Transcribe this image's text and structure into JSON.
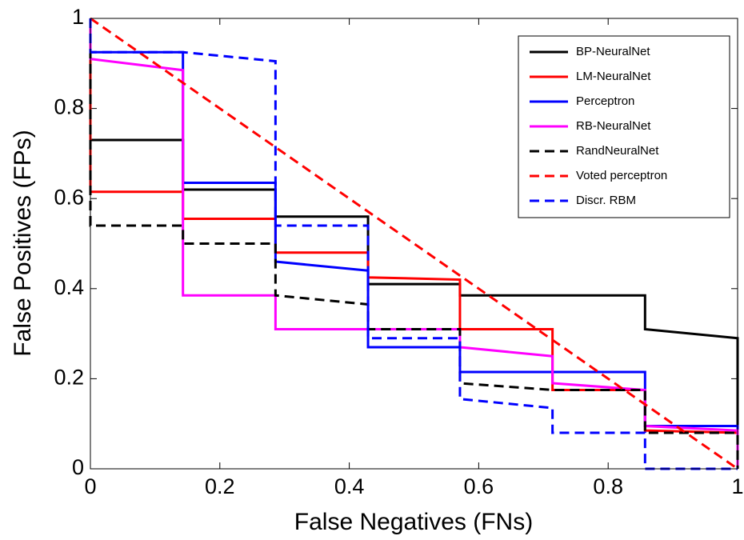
{
  "chart_data": {
    "type": "line",
    "xlabel": "False Negatives (FNs)",
    "ylabel": "False Positives (FPs)",
    "xlim": [
      0,
      1
    ],
    "ylim": [
      0,
      1
    ],
    "xticks": [
      0,
      0.2,
      0.4,
      0.6,
      0.8,
      1
    ],
    "yticks": [
      0,
      0.2,
      0.4,
      0.6,
      0.8,
      1
    ],
    "legend": "upper right",
    "series": [
      {
        "name": "BP-NeuralNet",
        "color": "#000000",
        "dash": false,
        "x": [
          0,
          0,
          0.143,
          0.143,
          0.286,
          0.286,
          0.429,
          0.429,
          0.571,
          0.571,
          0.857,
          0.857,
          1,
          1
        ],
        "values": [
          1,
          0.73,
          0.73,
          0.62,
          0.62,
          0.56,
          0.56,
          0.41,
          0.41,
          0.385,
          0.385,
          0.31,
          0.29,
          0
        ]
      },
      {
        "name": "LM-NeuralNet",
        "color": "#ff0000",
        "dash": false,
        "x": [
          0,
          0,
          0.143,
          0.143,
          0.286,
          0.286,
          0.429,
          0.429,
          0.571,
          0.571,
          0.714,
          0.714,
          0.857,
          0.857,
          1,
          1
        ],
        "values": [
          1,
          0.615,
          0.615,
          0.555,
          0.555,
          0.48,
          0.48,
          0.425,
          0.42,
          0.31,
          0.31,
          0.175,
          0.175,
          0.085,
          0.08,
          0
        ]
      },
      {
        "name": "Perceptron",
        "color": "#0000ff",
        "dash": false,
        "x": [
          0,
          0,
          0.143,
          0.143,
          0.286,
          0.286,
          0.429,
          0.429,
          0.571,
          0.571,
          0.857,
          0.857,
          1,
          1
        ],
        "values": [
          1,
          0.925,
          0.925,
          0.635,
          0.635,
          0.46,
          0.44,
          0.27,
          0.27,
          0.215,
          0.215,
          0.095,
          0.095,
          0
        ]
      },
      {
        "name": "RB-NeuralNet",
        "color": "#ff00ff",
        "dash": false,
        "x": [
          0,
          0,
          0.143,
          0.143,
          0.286,
          0.286,
          0.571,
          0.571,
          0.714,
          0.714,
          0.857,
          0.857,
          1,
          1
        ],
        "values": [
          1,
          0.91,
          0.885,
          0.385,
          0.385,
          0.31,
          0.31,
          0.27,
          0.25,
          0.19,
          0.175,
          0.095,
          0.085,
          0
        ]
      },
      {
        "name": "RandNeuralNet",
        "color": "#000000",
        "dash": true,
        "x": [
          0,
          0,
          0.143,
          0.143,
          0.286,
          0.286,
          0.429,
          0.429,
          0.571,
          0.571,
          0.714,
          0.857,
          0.857,
          1,
          1
        ],
        "values": [
          1,
          0.54,
          0.54,
          0.5,
          0.5,
          0.385,
          0.365,
          0.31,
          0.31,
          0.19,
          0.175,
          0.175,
          0.08,
          0.08,
          0
        ]
      },
      {
        "name": "Voted perceptron",
        "color": "#ff0000",
        "dash": true,
        "x": [
          0,
          1
        ],
        "values": [
          1,
          0
        ]
      },
      {
        "name": "Discr. RBM",
        "color": "#0000ff",
        "dash": true,
        "x": [
          0,
          0,
          0.143,
          0.286,
          0.286,
          0.429,
          0.429,
          0.571,
          0.571,
          0.714,
          0.714,
          0.857,
          0.857,
          1
        ],
        "values": [
          1,
          0.925,
          0.925,
          0.905,
          0.54,
          0.54,
          0.29,
          0.29,
          0.155,
          0.135,
          0.08,
          0.08,
          0,
          0
        ]
      }
    ]
  }
}
